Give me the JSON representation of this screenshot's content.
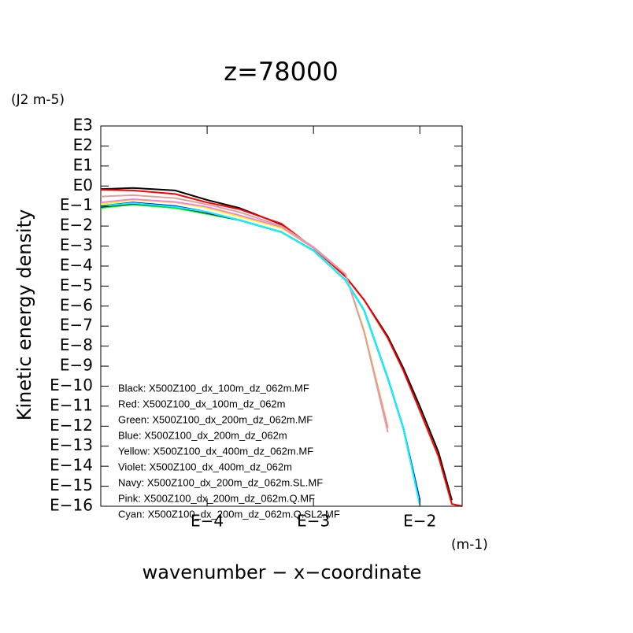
{
  "chart_data": {
    "type": "line",
    "title": "z=78000",
    "y_unit": "(J2 m-5)",
    "x_unit": "(m-1)",
    "ylabel": "Kinetic energy density",
    "xlabel": "wavenumber − x−coordinate",
    "xscale": "log",
    "yscale": "log",
    "xlim": [
      1e-05,
      0.025
    ],
    "ylim": [
      1e-16,
      1000
    ],
    "xticks": [
      {
        "value": 0.0001,
        "label": "E−4"
      },
      {
        "value": 0.001,
        "label": "E−3"
      },
      {
        "value": 0.01,
        "label": "E−2"
      }
    ],
    "yticks": [
      {
        "value": 1000,
        "label": "E3"
      },
      {
        "value": 100,
        "label": "E2"
      },
      {
        "value": 10,
        "label": "E1"
      },
      {
        "value": 1,
        "label": "E0"
      },
      {
        "value": 0.1,
        "label": "E−1"
      },
      {
        "value": 0.01,
        "label": "E−2"
      },
      {
        "value": 0.001,
        "label": "E−3"
      },
      {
        "value": 0.0001,
        "label": "E−4"
      },
      {
        "value": 1e-05,
        "label": "E−5"
      },
      {
        "value": 1e-06,
        "label": "E−6"
      },
      {
        "value": 1e-07,
        "label": "E−7"
      },
      {
        "value": 1e-08,
        "label": "E−8"
      },
      {
        "value": 1e-09,
        "label": "E−9"
      },
      {
        "value": 1e-10,
        "label": "E−10"
      },
      {
        "value": 1e-11,
        "label": "E−11"
      },
      {
        "value": 1e-12,
        "label": "E−12"
      },
      {
        "value": 1e-13,
        "label": "E−13"
      },
      {
        "value": 1e-14,
        "label": "E−14"
      },
      {
        "value": 1e-15,
        "label": "E−15"
      },
      {
        "value": 1e-16,
        "label": "E−16"
      }
    ],
    "x": [
      1e-05,
      2e-05,
      5e-05,
      0.0001,
      0.0002,
      0.0005,
      0.001,
      0.002,
      0.003,
      0.005,
      0.007,
      0.01,
      0.015,
      0.02,
      0.025
    ],
    "series": [
      {
        "name": "Black: X500Z100_dx_100m_dz_062m.MF",
        "color": "#000000",
        "values": [
          0.7,
          0.8,
          0.6,
          0.2,
          0.08,
          0.012,
          0.0008,
          3e-05,
          2e-06,
          3e-08,
          8e-10,
          1e-11,
          5e-14,
          2e-16,
          null
        ]
      },
      {
        "name": "Red: X500Z100_dx_100m_dz_062m",
        "color": "#ff0000",
        "values": [
          0.65,
          0.6,
          0.4,
          0.15,
          0.07,
          0.013,
          0.0008,
          3e-05,
          2e-06,
          2.5e-08,
          6e-10,
          6e-12,
          3e-14,
          1.3e-16,
          1e-16
        ]
      },
      {
        "name": "Green: X500Z100_dx_200m_dz_062m.MF",
        "color": "#00ff00",
        "values": [
          0.08,
          0.12,
          0.08,
          0.04,
          0.02,
          0.005,
          0.0006,
          2e-05,
          6e-07,
          2.5e-10,
          8e-13,
          1.2e-16,
          null,
          null,
          null
        ]
      },
      {
        "name": "Blue: X500Z100_dx_200m_dz_062m",
        "color": "#0000ff",
        "values": [
          0.1,
          0.15,
          0.1,
          0.05,
          0.02,
          0.005,
          0.0006,
          2e-05,
          6e-07,
          2.5e-10,
          8e-13,
          2e-16,
          null,
          null,
          null
        ]
      },
      {
        "name": "Yellow: X500Z100_dx_400m_dz_062m.MF",
        "color": "#ffff00",
        "values": [
          0.12,
          0.2,
          0.15,
          0.08,
          0.03,
          0.008,
          0.0008,
          4e-05,
          6e-08,
          1e-12,
          null,
          null,
          null,
          null,
          null
        ]
      },
      {
        "name": "Violet: X500Z100_dx_400m_dz_062m",
        "color": "#ee82ee",
        "values": [
          0.15,
          0.22,
          0.16,
          0.09,
          0.035,
          0.009,
          0.0008,
          4e-05,
          5e-08,
          8e-13,
          null,
          null,
          null,
          null,
          null
        ]
      },
      {
        "name": "Navy: X500Z100_dx_200m_dz_062m.SL.MF",
        "color": "#000080",
        "values": [
          0.09,
          0.13,
          0.09,
          0.045,
          0.02,
          0.005,
          0.0006,
          2e-05,
          6e-07,
          2.5e-10,
          8e-13,
          1.5e-16,
          null,
          null,
          null
        ]
      },
      {
        "name": "Pink: X500Z100_dx_200m_dz_062m.Q.MF",
        "color": "#dda0a0",
        "values": [
          0.3,
          0.35,
          0.25,
          0.12,
          0.05,
          0.01,
          0.0009,
          4e-05,
          5e-08,
          5e-13,
          null,
          null,
          null,
          null,
          null
        ]
      },
      {
        "name": "Cyan: X500Z100_dx_200m_dz_062m.Q.SL2.MF",
        "color": "#00ffff",
        "values": [
          0.1,
          0.14,
          0.09,
          0.05,
          0.02,
          0.005,
          0.0006,
          2e-05,
          6e-07,
          2.5e-10,
          8e-13,
          1.2e-16,
          null,
          null,
          null
        ]
      }
    ]
  }
}
